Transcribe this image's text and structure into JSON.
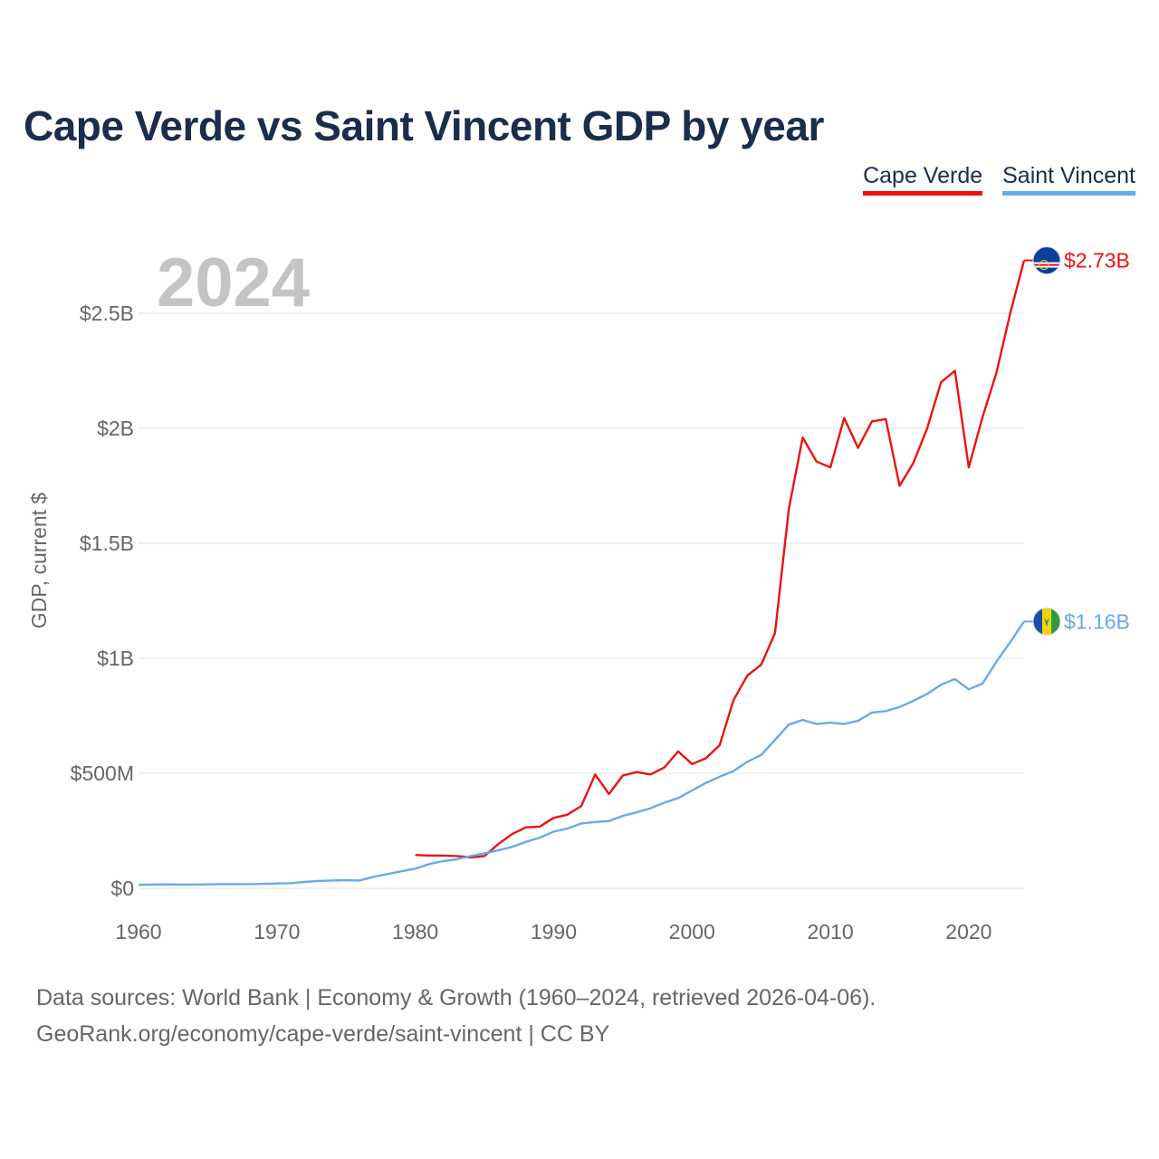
{
  "title": "Cape Verde vs Saint Vincent GDP by year",
  "source": {
    "line1": "Data sources: World Bank | Economy & Growth (1960–2024, retrieved 2026-04-06).",
    "line2": "GeoRank.org/economy/cape-verde/saint-vincent | CC BY"
  },
  "chart_data": {
    "type": "line",
    "title": "Cape Verde vs Saint Vincent GDP by year",
    "year_label": "2024",
    "ylabel": "GDP, current $",
    "xlabel": "",
    "xlim": [
      1960,
      2024
    ],
    "ylim": [
      0,
      2800000000
    ],
    "x_ticks": [
      {
        "value": 1960,
        "label": "1960"
      },
      {
        "value": 1970,
        "label": "1970"
      },
      {
        "value": 1980,
        "label": "1980"
      },
      {
        "value": 1990,
        "label": "1990"
      },
      {
        "value": 2000,
        "label": "2000"
      },
      {
        "value": 2010,
        "label": "2010"
      },
      {
        "value": 2020,
        "label": "2020"
      }
    ],
    "y_ticks": [
      {
        "value": 0,
        "label": "$0"
      },
      {
        "value": 500000000,
        "label": "$500M"
      },
      {
        "value": 1000000000,
        "label": "$1B"
      },
      {
        "value": 1500000000,
        "label": "$1.5B"
      },
      {
        "value": 2000000000,
        "label": "$2B"
      },
      {
        "value": 2500000000,
        "label": "$2.5B"
      }
    ],
    "grid": true,
    "legend_position": "top-right",
    "series": [
      {
        "name": "Cape Verde",
        "color": "#ee1111",
        "flag_icon": "cape-verde-flag-icon",
        "end_label": "$2.73B",
        "start_year": 1980,
        "values": [
          145,
          142,
          142,
          140,
          134,
          140,
          192,
          236,
          265,
          268,
          306,
          320,
          358,
          495,
          410,
          490,
          505,
          495,
          525,
          595,
          540,
          565,
          622,
          818,
          925,
          972,
          1110,
          1650,
          1960,
          1855,
          1830,
          2045,
          1915,
          2030,
          2040,
          1750,
          1850,
          2000,
          2200,
          2250,
          1830,
          2050,
          2240,
          2500,
          2730
        ]
      },
      {
        "name": "Saint Vincent",
        "color": "#66aaee",
        "flag_icon": "saint-vincent-flag-icon",
        "end_label": "$1.16B",
        "start_year": 1960,
        "values": [
          15,
          16,
          17,
          16,
          16,
          17,
          18,
          18,
          18,
          19,
          21,
          22,
          28,
          32,
          34,
          35,
          34,
          50,
          62,
          74,
          85,
          105,
          118,
          126,
          140,
          152,
          165,
          180,
          202,
          220,
          246,
          260,
          282,
          288,
          292,
          315,
          330,
          348,
          372,
          392,
          425,
          458,
          485,
          510,
          550,
          580,
          645,
          712,
          732,
          714,
          720,
          714,
          728,
          764,
          770,
          788,
          815,
          845,
          885,
          910,
          865,
          890,
          985,
          1070,
          1160
        ]
      }
    ]
  }
}
